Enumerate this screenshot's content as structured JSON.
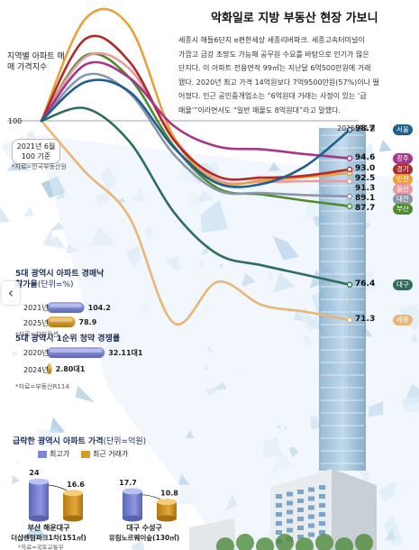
{
  "article": {
    "title": "악화일로 지방 부동산 현장 가보니",
    "body_lines": [
      "세종시 해들6단지 e편한세상 세종리버파크. 세종고속터미널이",
      "가깝고 금강 조망도 가능해 공무원 수요를 바탕으로 인기가 많은",
      "단지다. 이 아파트 전용면적 99㎡는 지난달 6억500만원에 거래",
      "됐다. 2020년 최고 가격 14억원보다 7억9500만원(57%)이나 떨",
      "어졌다. 인근 공인중개업소는 “6억원대 거래는 사정이 있는 ‘급",
      "매물’”이라면서도 “일반 매물도 8억원대”라고 말했다."
    ]
  },
  "chart_data": [
    {
      "type": "line",
      "title": "지역별 아파트 매매 가격지수",
      "source": "*자료=한국부동산원",
      "base_label": "2021년 6월 100 기준",
      "end_label": "2025년 1월",
      "ylabel_tick": "100",
      "x": [
        "2021-06",
        "2021-12",
        "2022-06",
        "2022-12",
        "2023-06",
        "2023-12",
        "2024-06",
        "2025-01"
      ],
      "series": [
        {
          "name": "서울",
          "color": "#1d5f8f",
          "values": [
            100,
            105.6,
            104.2,
            96.2,
            91.0,
            90.9,
            93.5,
            98.7
          ]
        },
        {
          "name": "광주",
          "color": "#a5378a",
          "values": [
            100,
            108.1,
            106.2,
            99.3,
            96.3,
            95.9,
            95.2,
            94.6
          ]
        },
        {
          "name": "경기",
          "color": "#b22a2a",
          "values": [
            100,
            111.8,
            108.5,
            97.3,
            92.0,
            91.8,
            92.1,
            93.0
          ]
        },
        {
          "name": "인천",
          "color": "#e8a13c",
          "values": [
            100,
            114.7,
            113.6,
            97.7,
            91.2,
            91.4,
            91.9,
            92.5
          ]
        },
        {
          "name": "울산",
          "color": "#e89aa0",
          "values": [
            100,
            109.2,
            107.5,
            97.6,
            91.5,
            91.2,
            91.3,
            91.3
          ]
        },
        {
          "name": "대전",
          "color": "#8c96ab",
          "values": [
            100,
            106.6,
            104.0,
            95.2,
            90.0,
            89.6,
            89.3,
            89.1
          ]
        },
        {
          "name": "부산",
          "color": "#4f8a2f",
          "values": [
            100,
            109.4,
            106.2,
            96.4,
            90.3,
            89.4,
            88.5,
            87.7
          ]
        },
        {
          "name": "대구",
          "color": "#2f6e5c",
          "values": [
            100,
            101.8,
            97.0,
            86.9,
            80.8,
            79.2,
            77.8,
            76.4
          ]
        },
        {
          "name": "세종",
          "color": "#e9b677",
          "values": [
            100,
            92.6,
            86.1,
            70.9,
            76.8,
            73.5,
            72.5,
            71.3
          ]
        }
      ],
      "end_values": [
        "98.7",
        "94.6",
        "93.0",
        "92.5",
        "91.3",
        "89.1",
        "87.7",
        "76.4",
        "71.3"
      ]
    },
    {
      "type": "bar",
      "title": "5대 광역시 아파트 경매낙찰가율",
      "unit": "(단위=%)",
      "source": "*자료=지지옥션",
      "categories": [
        "2021년",
        "2025년"
      ],
      "values": [
        104.2,
        78.9
      ],
      "labels": [
        "104.2",
        "78.9"
      ],
      "colors": [
        "#7b86d6",
        "#d79a28"
      ]
    },
    {
      "type": "bar",
      "title": "5대 광역시 1순위 청약 경쟁률",
      "source": "*자료=부동산R114",
      "categories": [
        "2020년",
        "2024년"
      ],
      "values": [
        32.11,
        2.8
      ],
      "labels": [
        "32.11대1",
        "2.80대1"
      ],
      "colors": [
        "#7b86d6",
        "#d79a28"
      ]
    },
    {
      "type": "bar",
      "title": "급락한 광역시 아파트 가격",
      "unit": "(단위=억원)",
      "source": "*자료=국토교통부",
      "legend": [
        "최고가",
        "최근 거래가"
      ],
      "categories": [
        "부산 해운대구 더샵센텀파크1차(151㎡)",
        "대구 수성구 유림노르웨이숲(130㎡)"
      ],
      "category_lines": [
        [
          "부산 해운대구",
          "더샵센텀파크1차(151㎡)"
        ],
        [
          "대구 수성구",
          "유림노르웨이숲(130㎡)"
        ]
      ],
      "series": [
        {
          "name": "최고가",
          "color": "#7b86d6",
          "values": [
            24,
            17.7
          ]
        },
        {
          "name": "최근 거래가",
          "color": "#d79a28",
          "values": [
            16.6,
            10.8
          ]
        }
      ],
      "labels": [
        [
          "24",
          "16.6"
        ],
        [
          "17.7",
          "10.8"
        ]
      ]
    }
  ],
  "nav": {
    "prev_glyph": "‹"
  },
  "colors": {
    "bg_shard_light": "#dcebf6",
    "bg_shard_mid": "#b9d6ec",
    "bg_shard_dark": "#8fbad9"
  }
}
